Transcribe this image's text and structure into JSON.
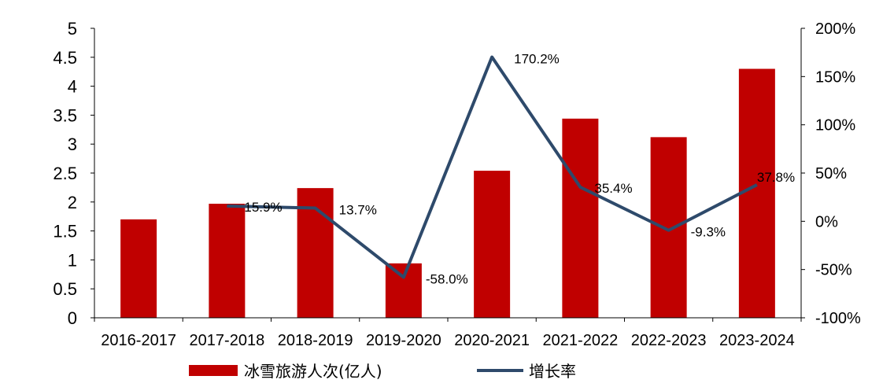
{
  "chart_data": {
    "type": "bar",
    "categories": [
      "2016-2017",
      "2017-2018",
      "2018-2019",
      "2019-2020",
      "2020-2021",
      "2021-2022",
      "2022-2023",
      "2023-2024"
    ],
    "series": [
      {
        "name": "冰雪旅游人次(亿人)",
        "type": "bar",
        "axis": "left",
        "color": "#c00000",
        "values": [
          1.7,
          1.97,
          2.24,
          0.94,
          2.54,
          3.44,
          3.12,
          4.3
        ]
      },
      {
        "name": "增长率",
        "type": "line",
        "axis": "right",
        "color": "#2e4a6b",
        "values": [
          null,
          15.9,
          13.7,
          -58.0,
          170.2,
          35.4,
          -9.3,
          37.8
        ],
        "labels": [
          "",
          "15.9%",
          "13.7%",
          "-58.0%",
          "170.2%",
          "35.4%",
          "-9.3%",
          "37.8%"
        ]
      }
    ],
    "y_left": {
      "lim": [
        0,
        5
      ],
      "ticks": [
        0,
        0.5,
        1,
        1.5,
        2,
        2.5,
        3,
        3.5,
        4,
        4.5,
        5
      ],
      "tick_labels": [
        "0",
        "0.5",
        "1",
        "1.5",
        "2",
        "2.5",
        "3",
        "3.5",
        "4",
        "4.5",
        "5"
      ]
    },
    "y_right": {
      "lim": [
        -100,
        200
      ],
      "ticks": [
        -100,
        -50,
        0,
        50,
        100,
        150,
        200
      ],
      "tick_labels": [
        "-100%",
        "-50%",
        "0%",
        "50%",
        "100%",
        "150%",
        "200%"
      ]
    },
    "title": "",
    "xlabel": "",
    "ylabel": "",
    "grid": false,
    "legend_position": "bottom"
  }
}
